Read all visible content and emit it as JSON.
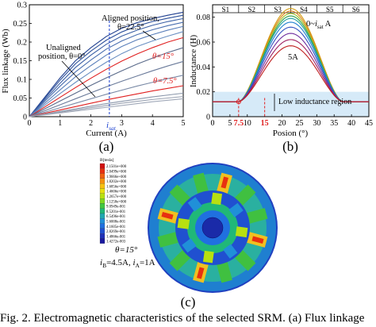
{
  "figure_caption": "Fig. 2.   Electromagnetic characteristics of the selected SRM. (a) Flux linkage",
  "panel_a": {
    "letter": "(a)",
    "ylabel": "Flux linkage (Wb)",
    "xlabel": "Current (A)",
    "annot_aligned_l1": "Aligned position,",
    "annot_aligned_l2": "θ=22.5°",
    "annot_unaligned_l1": "Unaligned",
    "annot_unaligned_l2": "position, θ=0°",
    "annot_theta15": "θ=15°",
    "annot_theta75": "θ=7.5°",
    "isat_label": "i",
    "isat_sub": "sat",
    "ticks_x": [
      "0",
      "1",
      "2",
      "3",
      "4",
      "5"
    ],
    "ticks_y": [
      "0",
      "0.05",
      "0.1",
      "0.15",
      "0.2",
      "0.25",
      "0.3"
    ]
  },
  "panel_b": {
    "letter": "(b)",
    "ylabel": "Inductance (H)",
    "xlabel": "Posion (°)",
    "sectors": [
      "S1",
      "S2",
      "S3",
      "S4",
      "S5",
      "S6"
    ],
    "annot_top": "0~",
    "annot_top_i": "i",
    "annot_top_sub": "sat",
    "annot_top_unit": " A",
    "annot_5a": "5A",
    "annot_low": "Low inductance region",
    "tick_75": "7.5",
    "tick_15": "15",
    "ticks_x": [
      "0",
      "5",
      "10",
      "20",
      "25",
      "30",
      "35",
      "40",
      "45"
    ],
    "ticks_y": [
      "0",
      "0.02",
      "0.04",
      "0.06",
      "0.08"
    ]
  },
  "panel_c": {
    "letter": "(c)",
    "legend_title": "B[tesla]",
    "legend_values": [
      "2.1501e+000",
      "2.0499e+000",
      "1.9666e+000",
      "1.8202e+000",
      "1.6856e+000",
      "1.4606e+000",
      "1.2657e+000",
      "1.1258e+000",
      "9.0949e-001",
      "8.5201e-001",
      "6.5496e-001",
      "5.6008e-001",
      "4.1605e-001",
      "2.8269e-001",
      "1.4866e-001",
      "1.4272e-003"
    ],
    "legend_colors": [
      "#d01010",
      "#e83010",
      "#f06010",
      "#f59010",
      "#f8c010",
      "#e8e010",
      "#b8e010",
      "#80d820",
      "#40c840",
      "#20b878",
      "#20a8b0",
      "#2090d8",
      "#2070e0",
      "#2050d0",
      "#2030b8",
      "#1a1aa0"
    ],
    "cond_theta": "θ=15°",
    "cond_current_ib": "i",
    "cond_current_ib_sub": "B",
    "cond_current_ib_val": "=4.5A, ",
    "cond_current_ia": "i",
    "cond_current_ia_sub": "A",
    "cond_current_ia_val": "=1A"
  },
  "chart_data": [
    {
      "type": "line",
      "title": "",
      "xlabel": "Current (A)",
      "ylabel": "Flux linkage (Wb)",
      "xlim": [
        0,
        5
      ],
      "ylim": [
        0,
        0.3
      ],
      "grid": false,
      "series": [
        {
          "color": "#1f3f8f",
          "x": [
            0,
            0.5,
            1,
            1.5,
            2,
            2.5,
            3,
            3.5,
            4,
            4.5,
            5
          ],
          "values": [
            0,
            0.052,
            0.104,
            0.15,
            0.185,
            0.215,
            0.237,
            0.252,
            0.263,
            0.272,
            0.28
          ]
        },
        {
          "color": "#2c4f9a",
          "x": [
            0,
            0.5,
            1,
            1.5,
            2,
            2.5,
            3,
            3.5,
            4,
            4.5,
            5
          ],
          "values": [
            0,
            0.049,
            0.098,
            0.142,
            0.176,
            0.205,
            0.227,
            0.243,
            0.255,
            0.264,
            0.272
          ]
        },
        {
          "color": "#3a5fa5",
          "x": [
            0,
            0.5,
            1,
            1.5,
            2,
            2.5,
            3,
            3.5,
            4,
            4.5,
            5
          ],
          "values": [
            0,
            0.045,
            0.09,
            0.132,
            0.165,
            0.194,
            0.216,
            0.232,
            0.245,
            0.255,
            0.263
          ]
        },
        {
          "color": "#4a6fb0",
          "x": [
            0,
            0.5,
            1,
            1.5,
            2,
            2.5,
            3,
            3.5,
            4,
            4.5,
            5
          ],
          "values": [
            0,
            0.041,
            0.082,
            0.12,
            0.152,
            0.181,
            0.203,
            0.22,
            0.233,
            0.244,
            0.253
          ]
        },
        {
          "color": "#5a7fba",
          "x": [
            0,
            0.5,
            1,
            1.5,
            2,
            2.5,
            3,
            3.5,
            4,
            4.5,
            5
          ],
          "values": [
            0,
            0.036,
            0.072,
            0.107,
            0.137,
            0.165,
            0.188,
            0.206,
            0.22,
            0.232,
            0.242
          ]
        },
        {
          "color": "#6a8fc2",
          "x": [
            0,
            0.5,
            1,
            1.5,
            2,
            2.5,
            3,
            3.5,
            4,
            4.5,
            5
          ],
          "values": [
            0,
            0.031,
            0.062,
            0.092,
            0.12,
            0.146,
            0.169,
            0.188,
            0.203,
            0.216,
            0.228
          ]
        },
        {
          "color": "#e02020",
          "x": [
            0,
            0.5,
            1,
            1.5,
            2,
            2.5,
            3,
            3.5,
            4,
            4.5,
            5
          ],
          "values": [
            0,
            0.026,
            0.052,
            0.078,
            0.103,
            0.127,
            0.149,
            0.168,
            0.185,
            0.2,
            0.212
          ]
        },
        {
          "color": "#5a6a8a",
          "x": [
            0,
            0.5,
            1,
            1.5,
            2,
            2.5,
            3,
            3.5,
            4,
            4.5,
            5
          ],
          "values": [
            0,
            0.021,
            0.042,
            0.063,
            0.084,
            0.104,
            0.123,
            0.141,
            0.157,
            0.172,
            0.185
          ]
        },
        {
          "color": "#6a7a9a",
          "x": [
            0,
            0.5,
            1,
            1.5,
            2,
            2.5,
            3,
            3.5,
            4,
            4.5,
            5
          ],
          "values": [
            0,
            0.016,
            0.032,
            0.048,
            0.064,
            0.08,
            0.095,
            0.109,
            0.123,
            0.136,
            0.148
          ]
        },
        {
          "color": "#7a8aa6",
          "x": [
            0,
            0.5,
            1,
            1.5,
            2,
            2.5,
            3,
            3.5,
            4,
            4.5,
            5
          ],
          "values": [
            0,
            0.012,
            0.024,
            0.036,
            0.048,
            0.06,
            0.071,
            0.082,
            0.092,
            0.102,
            0.111
          ]
        },
        {
          "color": "#e02020",
          "x": [
            0,
            0.5,
            1,
            1.5,
            2,
            2.5,
            3,
            3.5,
            4,
            4.5,
            5
          ],
          "values": [
            0,
            0.009,
            0.018,
            0.027,
            0.036,
            0.045,
            0.053,
            0.061,
            0.069,
            0.076,
            0.083
          ]
        },
        {
          "color": "#8a96aa",
          "x": [
            0,
            0.5,
            1,
            1.5,
            2,
            2.5,
            3,
            3.5,
            4,
            4.5,
            5
          ],
          "values": [
            0,
            0.007,
            0.014,
            0.021,
            0.028,
            0.035,
            0.041,
            0.047,
            0.053,
            0.058,
            0.063
          ]
        },
        {
          "color": "#9aa2b2",
          "x": [
            0,
            0.5,
            1,
            1.5,
            2,
            2.5,
            3,
            3.5,
            4,
            4.5,
            5
          ],
          "values": [
            0,
            0.006,
            0.012,
            0.018,
            0.024,
            0.03,
            0.036,
            0.041,
            0.046,
            0.05,
            0.054
          ]
        },
        {
          "color": "#a0a8b8",
          "x": [
            0,
            0.5,
            1,
            1.5,
            2,
            2.5,
            3,
            3.5,
            4,
            4.5,
            5
          ],
          "values": [
            0,
            0.005,
            0.01,
            0.015,
            0.02,
            0.025,
            0.03,
            0.035,
            0.04,
            0.044,
            0.048
          ]
        }
      ],
      "markers": {
        "isat": 2.6
      }
    },
    {
      "type": "line",
      "title": "",
      "xlabel": "Posion (°)",
      "ylabel": "Inductance (H)",
      "xlim": [
        0,
        45
      ],
      "ylim": [
        0,
        0.09
      ],
      "grid": false,
      "series": [
        {
          "color": "#d4a017",
          "peak": 0.087
        },
        {
          "color": "#e0801a",
          "peak": 0.085
        },
        {
          "color": "#a0c020",
          "peak": 0.083
        },
        {
          "color": "#30a050",
          "peak": 0.081
        },
        {
          "color": "#20a0a0",
          "peak": 0.079
        },
        {
          "color": "#2080d0",
          "peak": 0.076
        },
        {
          "color": "#3050c0",
          "peak": 0.072
        },
        {
          "color": "#7030a0",
          "peak": 0.067
        },
        {
          "color": "#a02060",
          "peak": 0.062
        },
        {
          "color": "#c02020",
          "peak": 0.057
        }
      ],
      "base": 0.012,
      "rise_start": 7.5,
      "peak_pos": 22.5,
      "fall_end": 37.5,
      "sector_bounds": [
        0,
        7.5,
        15,
        22.5,
        30,
        37.5,
        45
      ],
      "low_region": [
        0,
        0.02
      ]
    }
  ]
}
